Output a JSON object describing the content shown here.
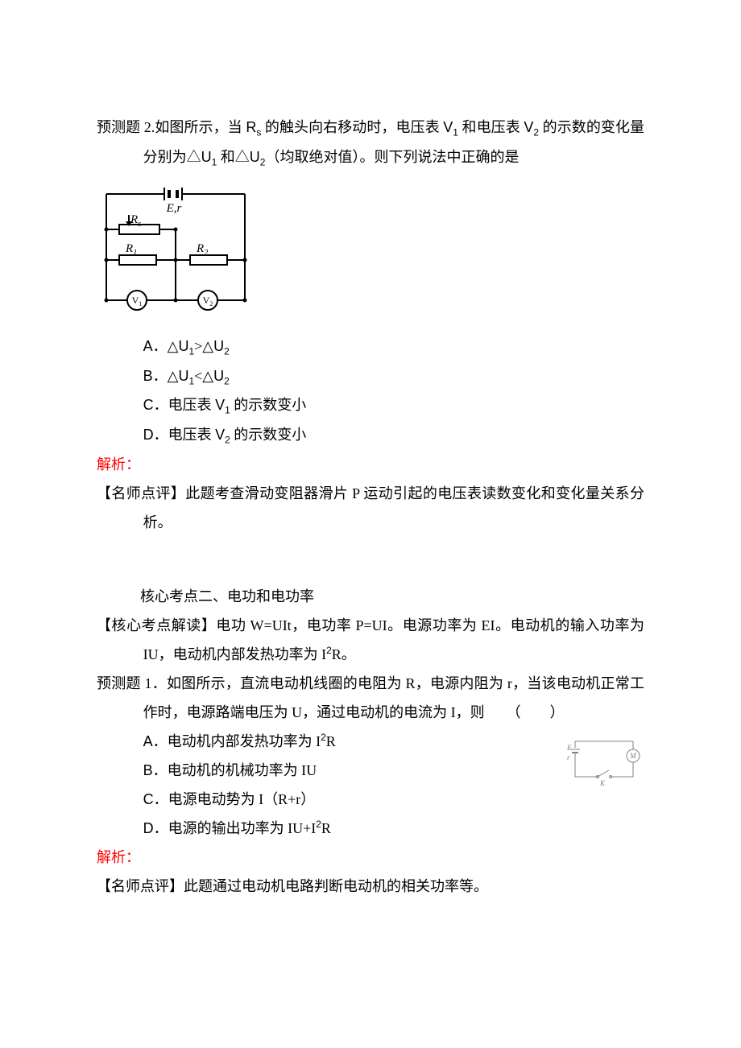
{
  "q1": {
    "prefix": "预测题 2.",
    "stem_a": "如图所示，当 ",
    "rs": "R",
    "rs_sub": "s",
    "stem_b": " 的触头向右移动时，电压表 ",
    "v": "V",
    "sub1": "1",
    "stem_c": " 和电压表 ",
    "sub2": "2",
    "stem_d": " 的示数的变化量分别为△",
    "u": "U",
    "stem_e": " 和△",
    "stem_f": "（均取绝对值）。则下列说法中正确的是",
    "options": {
      "A": {
        "letter": "A．",
        "t1": "△",
        "t2": ">△"
      },
      "B": {
        "letter": "B．",
        "t1": "△",
        "t2": "<△"
      },
      "C": {
        "letter": "C．",
        "t1": "电压表 ",
        "t2": " 的示数变小"
      },
      "D": {
        "letter": "D．",
        "t1": "电压表 ",
        "t2": " 的示数变小"
      }
    },
    "analysis_label": "解析：",
    "comment_label": "【名师点评】",
    "comment": "此题考查滑动变阻器滑片 P 运动引起的电压表读数变化和变化量关系分析。",
    "circuit": {
      "E_label": "E,r",
      "Rs_label": "R",
      "Rs_sub": "s",
      "R1_label": "R",
      "R1_sub": "1",
      "R2_label": "R",
      "R2_sub": "2",
      "V1_label": "V",
      "V1_sub": "1",
      "V2_label": "V",
      "V2_sub": "2",
      "stroke": "#000000",
      "stroke_width": 2,
      "font_family": "Times New Roman",
      "font_size": 15
    }
  },
  "section2": {
    "title_indent": "　　　",
    "title": "核心考点二、电功和电功率",
    "khd_label": "【核心考点解读】",
    "khd_text_a": "电功 W=UIt，电功率 P=UI。电源功率为 EI。电动机的输入功率为 IU，电动机内部发热功率为 I",
    "sup2": "2",
    "khd_text_b": "R。"
  },
  "q2": {
    "prefix": "预测题 1．",
    "stem": "如图所示，直流电动机线圈的电阻为 R，电源内阻为 r，当该电动机正常工作时，电源路端电压为 U，通过电动机的电流为 I，则　　（　　）",
    "options": {
      "A": {
        "letter": "A．",
        "t1": "电动机内部发热功率为 I",
        "sup": "2",
        "t2": "R"
      },
      "B": {
        "letter": "B．",
        "t": "电动机的机械功率为 IU"
      },
      "C": {
        "letter": "C．",
        "t": "电源电动势为 I（R+r）"
      },
      "D": {
        "letter": "D．",
        "t1": "电源的输出功率为 IU+I",
        "sup": "2",
        "t2": "R"
      }
    },
    "analysis_label": "解析：",
    "comment_label": "【名师点评】",
    "comment": "此题通过电动机电路判断电动机的相关功率等。",
    "circuit": {
      "E_label": "E",
      "r_label": "r",
      "K_label": "K",
      "M_label": "M",
      "stroke": "#808080",
      "stroke_width": 1,
      "font_family": "Times New Roman",
      "font_size": 9
    }
  }
}
